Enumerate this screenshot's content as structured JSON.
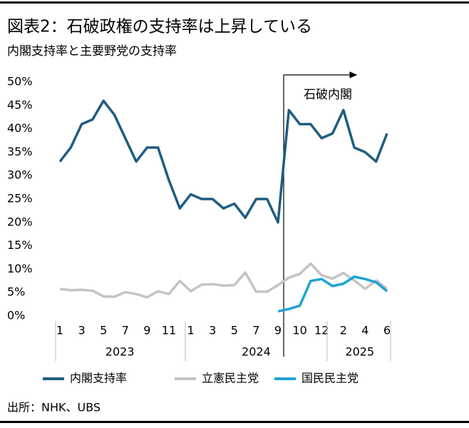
{
  "chart_data": {
    "type": "line",
    "title": "図表2：石破政権の支持率は上昇している",
    "subtitle": "内閣支持率と主要野党の支持率",
    "source": "出所：NHK、UBS",
    "annotation": "石破内閣",
    "categories": [
      "1",
      null,
      "3",
      null,
      "5",
      null,
      "7",
      null,
      "9",
      null,
      "11",
      null,
      "1",
      null,
      "3",
      null,
      "5",
      null,
      "7",
      null,
      "9",
      null,
      "10",
      null,
      "12",
      null,
      "2",
      null,
      "4",
      null,
      "6"
    ],
    "x_groups": [
      {
        "label": "2023",
        "count": 12
      },
      {
        "label": "2024",
        "count": 13
      },
      {
        "label": "2025",
        "count": 6
      }
    ],
    "ylim": [
      0,
      50
    ],
    "yticks": [
      {
        "value": 0,
        "label": "0%"
      },
      {
        "value": 5,
        "label": "5%"
      },
      {
        "value": 10,
        "label": "10%"
      },
      {
        "value": 15,
        "label": "15%"
      },
      {
        "value": 20,
        "label": "20%"
      },
      {
        "value": 25,
        "label": "25%"
      },
      {
        "value": 30,
        "label": "30%"
      },
      {
        "value": 35,
        "label": "35%"
      },
      {
        "value": 40,
        "label": "40%"
      },
      {
        "value": 45,
        "label": "45%"
      },
      {
        "value": 50,
        "label": "50%"
      }
    ],
    "grid": false,
    "series": [
      {
        "name": "内閣支持率",
        "color": "#1f5d80",
        "values": [
          33,
          36,
          41,
          42,
          46,
          43,
          38,
          33,
          36,
          36,
          29,
          23,
          26,
          25,
          25,
          23,
          24,
          21,
          25,
          25,
          20,
          44,
          41,
          41,
          38,
          39,
          44,
          36,
          35,
          33,
          39
        ]
      },
      {
        "name": "立憲民主党",
        "color": "#c4c4c4",
        "values": [
          5.8,
          5.5,
          5.6,
          5.4,
          4.2,
          4.1,
          5.1,
          4.7,
          4.0,
          5.3,
          4.7,
          7.5,
          5.3,
          6.7,
          6.8,
          6.5,
          6.6,
          9.3,
          5.2,
          5.2,
          6.6,
          8.2,
          9.0,
          11.2,
          8.7,
          8.0,
          9.2,
          7.6,
          5.8,
          7.6,
          5.8
        ]
      },
      {
        "name": "国民民主党",
        "color": "#1fa3d6",
        "values": [
          null,
          null,
          null,
          null,
          null,
          null,
          null,
          null,
          null,
          null,
          null,
          null,
          null,
          null,
          null,
          null,
          null,
          null,
          null,
          null,
          1.0,
          1.5,
          2.2,
          7.5,
          7.9,
          6.4,
          6.9,
          8.4,
          7.9,
          7.2,
          5.3
        ]
      }
    ]
  }
}
